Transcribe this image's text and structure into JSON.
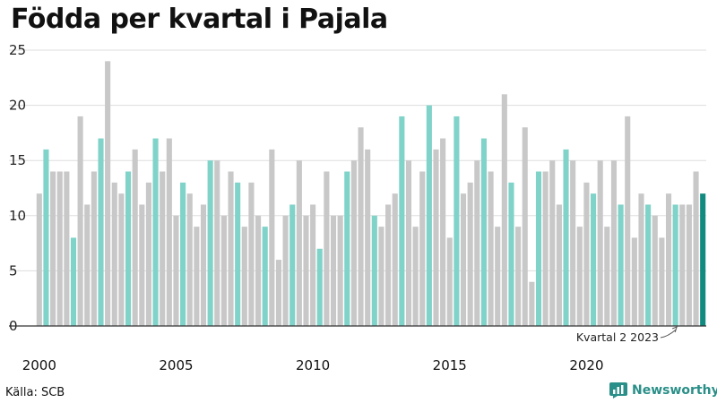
{
  "chart_data": {
    "type": "bar",
    "title": "Födda per kvartal i Pajala",
    "xlabel": "",
    "ylabel": "",
    "ylim": [
      0,
      25
    ],
    "y_ticks": [
      0,
      5,
      10,
      15,
      20,
      25
    ],
    "x_tick_labels": [
      "2000",
      "2005",
      "2010",
      "2015",
      "2020"
    ],
    "first_year": 2000,
    "highlight_quarter": 1,
    "values": [
      12,
      16,
      14,
      14,
      14,
      8,
      19,
      11,
      14,
      17,
      24,
      13,
      12,
      14,
      16,
      11,
      13,
      17,
      14,
      17,
      10,
      13,
      12,
      9,
      11,
      15,
      15,
      10,
      14,
      13,
      9,
      13,
      10,
      9,
      16,
      6,
      10,
      11,
      15,
      10,
      11,
      7,
      14,
      10,
      10,
      14,
      15,
      18,
      16,
      10,
      9,
      11,
      12,
      19,
      15,
      9,
      14,
      20,
      16,
      17,
      8,
      19,
      12,
      13,
      15,
      17,
      14,
      9,
      21,
      13,
      9,
      18,
      4,
      14,
      14,
      15,
      11,
      16,
      15,
      9,
      13,
      12,
      15,
      9,
      15,
      11,
      19,
      8,
      12,
      11,
      10,
      8,
      12,
      11,
      11,
      11,
      14,
      12
    ],
    "annotation": "Kvartal 2 2023",
    "grid": true,
    "colors": {
      "highlight": "#7fd3c9",
      "normal": "#c8c8c8",
      "last": "#138a80",
      "grid": "#dddddd",
      "axis": "#333333",
      "text": "#222222"
    }
  },
  "footer": {
    "source": "Källa: SCB",
    "brand": "Newsworthy",
    "brand_icon": "bar-chart-logo-icon"
  }
}
